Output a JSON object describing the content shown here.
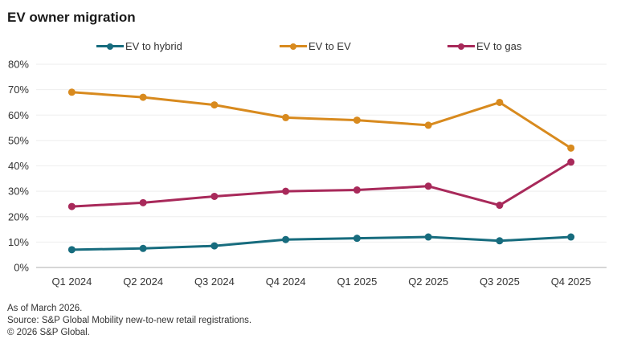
{
  "title": "EV owner migration",
  "footer": {
    "line1": "As of March 2026.",
    "line2": "Source: S&P Global Mobility new-to-new retail registrations.",
    "line3": "© 2026 S&P Global."
  },
  "chart_data": {
    "type": "line",
    "title": "EV owner migration",
    "xlabel": "",
    "ylabel": "",
    "categories": [
      "Q1 2024",
      "Q2 2024",
      "Q3 2024",
      "Q4 2024",
      "Q1 2025",
      "Q2 2025",
      "Q3 2025",
      "Q4 2025"
    ],
    "ylim": [
      0,
      80
    ],
    "yticks": [
      0,
      10,
      20,
      30,
      40,
      50,
      60,
      70,
      80
    ],
    "ytick_labels": [
      "0%",
      "10%",
      "20%",
      "30%",
      "40%",
      "50%",
      "60%",
      "70%",
      "80%"
    ],
    "grid": true,
    "legend_position": "top",
    "series": [
      {
        "name": "EV to hybrid",
        "color": "#176C7E",
        "values": [
          7,
          7.5,
          8.5,
          11,
          11.5,
          12,
          10.5,
          12
        ]
      },
      {
        "name": "EV to EV",
        "color": "#D88A1E",
        "values": [
          69,
          67,
          64,
          59,
          58,
          56,
          65,
          47
        ]
      },
      {
        "name": "EV to gas",
        "color": "#A8295A",
        "values": [
          24,
          25.5,
          28,
          30,
          30.5,
          32,
          24.5,
          41.5
        ]
      }
    ]
  }
}
